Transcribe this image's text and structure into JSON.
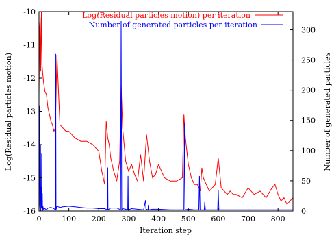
{
  "chart_data": {
    "type": "line",
    "title": "",
    "xlabel": "Iteration step",
    "ylabel_left": "Log(Residual particles motion)",
    "ylabel_right": "Number of generated particles",
    "xlim": [
      0,
      850
    ],
    "ylim_left": [
      -16,
      -10
    ],
    "ylim_right": [
      0,
      330
    ],
    "x_ticks": [
      0,
      100,
      200,
      300,
      400,
      500,
      600,
      700,
      800
    ],
    "y_left_ticks": [
      -16,
      -15,
      -14,
      -13,
      -12,
      -11,
      -10
    ],
    "y_right_ticks": [
      0,
      50,
      100,
      150,
      200,
      250,
      300
    ],
    "legend_position": "top-right",
    "colors": {
      "residual": "#ff0000",
      "particles": "#0000ff"
    },
    "series": [
      {
        "name": "Log(Residual particles motion) per iteration",
        "axis": "left",
        "color": "#ff0000",
        "x": [
          0,
          2,
          4,
          6,
          8,
          10,
          15,
          20,
          25,
          30,
          35,
          40,
          45,
          50,
          55,
          60,
          70,
          80,
          90,
          100,
          120,
          140,
          160,
          180,
          200,
          210,
          220,
          225,
          230,
          235,
          240,
          250,
          260,
          270,
          275,
          280,
          290,
          300,
          310,
          320,
          330,
          340,
          350,
          360,
          370,
          380,
          390,
          400,
          420,
          440,
          460,
          480,
          485,
          490,
          500,
          510,
          520,
          530,
          540,
          545,
          550,
          560,
          570,
          580,
          590,
          600,
          610,
          620,
          630,
          640,
          650,
          660,
          680,
          700,
          720,
          740,
          760,
          780,
          790,
          800,
          810,
          820,
          830,
          840,
          850
        ],
        "y": [
          -12.5,
          -10.5,
          -10.2,
          -11.8,
          -10.0,
          -11.6,
          -12.1,
          -12.4,
          -12.5,
          -12.9,
          -13.1,
          -13.3,
          -13.4,
          -13.6,
          -13.5,
          -11.3,
          -13.4,
          -13.5,
          -13.6,
          -13.6,
          -13.8,
          -13.9,
          -13.9,
          -14.0,
          -14.2,
          -14.8,
          -15.2,
          -13.3,
          -13.8,
          -14.0,
          -14.4,
          -14.8,
          -15.1,
          -14.5,
          -12.2,
          -13.5,
          -14.5,
          -14.8,
          -14.6,
          -14.9,
          -15.1,
          -14.3,
          -15.1,
          -13.7,
          -14.5,
          -15.0,
          -14.9,
          -14.6,
          -15.0,
          -15.1,
          -15.1,
          -15.0,
          -13.1,
          -13.8,
          -14.6,
          -15.0,
          -15.2,
          -15.2,
          -15.4,
          -14.7,
          -15.0,
          -15.2,
          -15.4,
          -15.3,
          -15.2,
          -14.4,
          -15.3,
          -15.4,
          -15.5,
          -15.4,
          -15.5,
          -15.5,
          -15.6,
          -15.3,
          -15.5,
          -15.4,
          -15.6,
          -15.3,
          -15.2,
          -15.5,
          -15.7,
          -15.6,
          -15.8,
          -15.7,
          -15.6
        ]
      },
      {
        "name": "Number of generated particles per iteration",
        "axis": "right",
        "color": "#0000ff",
        "x": [
          0,
          1,
          2,
          3,
          4,
          5,
          6,
          7,
          8,
          9,
          10,
          11,
          12,
          13,
          15,
          20,
          25,
          30,
          40,
          50,
          55,
          56,
          57,
          60,
          70,
          80,
          100,
          120,
          140,
          160,
          180,
          200,
          220,
          229,
          230,
          231,
          240,
          260,
          270,
          273,
          275,
          277,
          280,
          290,
          297,
          298,
          299,
          310,
          330,
          350,
          357,
          358,
          359,
          365,
          366,
          367,
          380,
          400,
          440,
          480,
          485,
          487,
          489,
          500,
          520,
          535,
          537,
          539,
          550,
          553,
          555,
          557,
          570,
          590,
          598,
          600,
          602,
          620,
          640,
          660,
          700,
          750,
          800,
          850
        ],
        "y": [
          2,
          10,
          175,
          60,
          15,
          110,
          0,
          40,
          5,
          95,
          3,
          30,
          0,
          8,
          3,
          4,
          2,
          5,
          6,
          4,
          2,
          260,
          2,
          8,
          6,
          7,
          8,
          7,
          6,
          5,
          5,
          4,
          4,
          2,
          72,
          2,
          5,
          5,
          3,
          2,
          315,
          2,
          4,
          3,
          2,
          58,
          2,
          4,
          3,
          2,
          18,
          2,
          3,
          2,
          10,
          2,
          3,
          3,
          2,
          2,
          2,
          145,
          2,
          3,
          2,
          2,
          58,
          2,
          2,
          2,
          15,
          2,
          2,
          2,
          2,
          35,
          2,
          2,
          2,
          2,
          2,
          2,
          2,
          2
        ]
      }
    ]
  }
}
